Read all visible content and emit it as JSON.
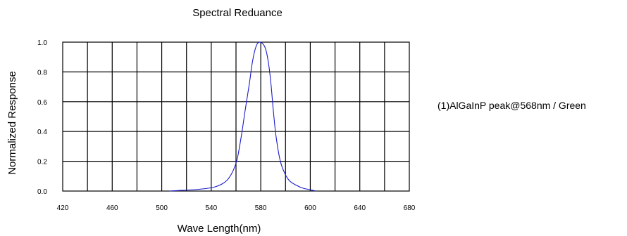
{
  "chart_data": {
    "type": "line",
    "title": "Spectral  Reduance",
    "xlabel": "Wave Length(nm)",
    "ylabel": "Normalized  Response",
    "xlim": [
      420,
      680
    ],
    "ylim": [
      0,
      1.0
    ],
    "x_ticks": [
      420,
      460,
      500,
      540,
      580,
      600,
      640,
      680
    ],
    "x_tick_labels": [
      "420",
      "460",
      "500",
      "540",
      "580",
      "600",
      "640",
      "680"
    ],
    "y_ticks": [
      0.0,
      0.2,
      0.4,
      0.6,
      0.8,
      1.0
    ],
    "y_tick_labels": [
      "0.0",
      "0.2",
      "0.4",
      "0.6",
      "0.8",
      "1.0"
    ],
    "grid": true,
    "legend_placement": "right",
    "line_color": "#1a1acc",
    "series": [
      {
        "name": "(1)AlGaInP peak@568nm / Green",
        "x": [
          500,
          510,
          520,
          530,
          535,
          540,
          544,
          548,
          551,
          554,
          557,
          560,
          562,
          564,
          566,
          568,
          570,
          572,
          574,
          576,
          578,
          580,
          583,
          586,
          590,
          595,
          600,
          605,
          610
        ],
        "y": [
          0.0,
          0.005,
          0.01,
          0.02,
          0.03,
          0.05,
          0.08,
          0.14,
          0.22,
          0.37,
          0.55,
          0.72,
          0.85,
          0.94,
          0.99,
          1.0,
          0.99,
          0.96,
          0.88,
          0.74,
          0.54,
          0.37,
          0.21,
          0.13,
          0.07,
          0.04,
          0.02,
          0.01,
          0.0
        ]
      }
    ]
  }
}
